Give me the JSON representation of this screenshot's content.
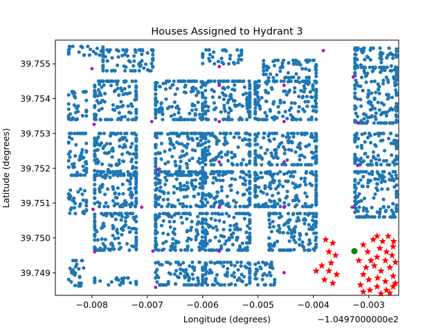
{
  "chart_data": {
    "type": "scatter",
    "title": "Houses Assigned to Hydrant 3",
    "xlabel": "Longitude (degrees)",
    "ylabel": "Latitude (degrees)",
    "x_offset_label": "−1.0497000000e2",
    "xlim": [
      -0.00866,
      -0.00246
    ],
    "ylim": [
      39.74835,
      39.75568
    ],
    "x_ticks": [
      -0.008,
      -0.007,
      -0.006,
      -0.005,
      -0.004,
      -0.003
    ],
    "x_tick_labels": [
      "−0.008",
      "−0.007",
      "−0.006",
      "−0.005",
      "−0.004",
      "−0.003"
    ],
    "y_ticks": [
      39.749,
      39.75,
      39.751,
      39.752,
      39.753,
      39.754,
      39.755
    ],
    "y_tick_labels": [
      "39.749",
      "39.750",
      "39.751",
      "39.752",
      "39.753",
      "39.754",
      "39.755"
    ],
    "grid": false,
    "legend": "none",
    "colors": {
      "houses": "#1f77b4",
      "hydrants": "#c000c0",
      "assigned": "#ff0000",
      "hydrant3": "#008000"
    },
    "house_blocks": [
      {
        "x": [
          -0.00842,
          -0.00815
        ],
        "y": [
          39.74862,
          39.74935
        ]
      },
      {
        "x": [
          -0.00795,
          -0.0072
        ],
        "y": [
          39.74865,
          39.74885
        ]
      },
      {
        "x": [
          -0.00685,
          -0.006
        ],
        "y": [
          39.74865,
          39.7493
        ]
      },
      {
        "x": [
          -0.00595,
          -0.00515
        ],
        "y": [
          39.74865,
          39.7493
        ]
      },
      {
        "x": [
          -0.00505,
          -0.0047
        ],
        "y": [
          39.74865,
          39.7493
        ]
      },
      {
        "x": [
          -0.00795,
          -0.0072
        ],
        "y": [
          39.74965,
          39.7507
        ]
      },
      {
        "x": [
          -0.00685,
          -0.006
        ],
        "y": [
          39.74965,
          39.7507
        ]
      },
      {
        "x": [
          -0.00595,
          -0.00515
        ],
        "y": [
          39.74965,
          39.7507
        ]
      },
      {
        "x": [
          -0.0048,
          -0.00395
        ],
        "y": [
          39.74965,
          39.7507
        ]
      },
      {
        "x": [
          -0.00842,
          -0.0081
        ],
        "y": [
          39.7507,
          39.7514
        ]
      },
      {
        "x": [
          -0.00795,
          -0.0072
        ],
        "y": [
          39.7509,
          39.7519
        ]
      },
      {
        "x": [
          -0.00685,
          -0.006
        ],
        "y": [
          39.7509,
          39.7519
        ]
      },
      {
        "x": [
          -0.00595,
          -0.00515
        ],
        "y": [
          39.7509,
          39.7519
        ]
      },
      {
        "x": [
          -0.00505,
          -0.00395
        ],
        "y": [
          39.7509,
          39.7519
        ]
      },
      {
        "x": [
          -0.00325,
          -0.0025
        ],
        "y": [
          39.7506,
          39.7519
        ]
      },
      {
        "x": [
          -0.00842,
          -0.0081
        ],
        "y": [
          39.7518,
          39.753
        ]
      },
      {
        "x": [
          -0.00795,
          -0.0072
        ],
        "y": [
          39.7518,
          39.753
        ]
      },
      {
        "x": [
          -0.00685,
          -0.006
        ],
        "y": [
          39.7518,
          39.753
        ]
      },
      {
        "x": [
          -0.00595,
          -0.00515
        ],
        "y": [
          39.7521,
          39.753
        ]
      },
      {
        "x": [
          -0.00505,
          -0.00395
        ],
        "y": [
          39.7521,
          39.753
        ]
      },
      {
        "x": [
          -0.00325,
          -0.0025
        ],
        "y": [
          39.7521,
          39.753
        ]
      },
      {
        "x": [
          -0.00842,
          -0.0081
        ],
        "y": [
          39.7534,
          39.7542
        ]
      },
      {
        "x": [
          -0.00795,
          -0.0072
        ],
        "y": [
          39.7534,
          39.7545
        ]
      },
      {
        "x": [
          -0.00685,
          -0.006
        ],
        "y": [
          39.7534,
          39.7545
        ]
      },
      {
        "x": [
          -0.00595,
          -0.00515
        ],
        "y": [
          39.7534,
          39.7545
        ]
      },
      {
        "x": [
          -0.00505,
          -0.00395
        ],
        "y": [
          39.7534,
          39.7545
        ]
      },
      {
        "x": [
          -0.00325,
          -0.0025
        ],
        "y": [
          39.7533,
          39.7549
        ]
      },
      {
        "x": [
          -0.00842,
          -0.0078
        ],
        "y": [
          39.75525,
          39.7555
        ]
      },
      {
        "x": [
          -0.0078,
          -0.0069
        ],
        "y": [
          39.7548,
          39.7554
        ]
      },
      {
        "x": [
          -0.006,
          -0.0053
        ],
        "y": [
          39.755,
          39.7554
        ]
      },
      {
        "x": [
          -0.0049,
          -0.00395
        ],
        "y": [
          39.7546,
          39.7551
        ]
      },
      {
        "x": [
          -0.00325,
          -0.0025
        ],
        "y": [
          39.7548,
          39.75545
        ]
      }
    ],
    "assigned_houses": [
      {
        "x": -0.00378,
        "y": 39.74995
      },
      {
        "x": -0.00365,
        "y": 39.74985
      },
      {
        "x": -0.00372,
        "y": 39.7496
      },
      {
        "x": -0.0036,
        "y": 39.7495
      },
      {
        "x": -0.00368,
        "y": 39.74928
      },
      {
        "x": -0.00385,
        "y": 39.7492
      },
      {
        "x": -0.00395,
        "y": 39.74905
      },
      {
        "x": -0.00372,
        "y": 39.74905
      },
      {
        "x": -0.00358,
        "y": 39.74895
      },
      {
        "x": -0.0038,
        "y": 39.7488
      },
      {
        "x": -0.00365,
        "y": 39.7487
      },
      {
        "x": -0.0031,
        "y": 39.7498
      },
      {
        "x": -0.00302,
        "y": 39.7496
      },
      {
        "x": -0.00318,
        "y": 39.74935
      },
      {
        "x": -0.00305,
        "y": 39.74915
      },
      {
        "x": -0.0031,
        "y": 39.74895
      },
      {
        "x": -0.003,
        "y": 39.7488
      },
      {
        "x": -0.00315,
        "y": 39.74865
      },
      {
        "x": -0.00298,
        "y": 39.7485
      },
      {
        "x": -0.0031,
        "y": 39.74845
      },
      {
        "x": -0.00285,
        "y": 39.75005
      },
      {
        "x": -0.00275,
        "y": 39.7499
      },
      {
        "x": -0.00265,
        "y": 39.75005
      },
      {
        "x": -0.00255,
        "y": 39.7499
      },
      {
        "x": -0.0028,
        "y": 39.7497
      },
      {
        "x": -0.00268,
        "y": 39.7496
      },
      {
        "x": -0.00256,
        "y": 39.74975
      },
      {
        "x": -0.00285,
        "y": 39.74945
      },
      {
        "x": -0.0027,
        "y": 39.74935
      },
      {
        "x": -0.00258,
        "y": 39.7495
      },
      {
        "x": -0.0029,
        "y": 39.7492
      },
      {
        "x": -0.00278,
        "y": 39.74905
      },
      {
        "x": -0.00262,
        "y": 39.74915
      },
      {
        "x": -0.00284,
        "y": 39.74885
      },
      {
        "x": -0.0027,
        "y": 39.74875
      },
      {
        "x": -0.00256,
        "y": 39.7489
      },
      {
        "x": -0.00285,
        "y": 39.7486
      },
      {
        "x": -0.00268,
        "y": 39.7485
      },
      {
        "x": -0.00256,
        "y": 39.7486
      },
      {
        "x": -0.00278,
        "y": 39.7484
      },
      {
        "x": -0.00262,
        "y": 39.74842
      },
      {
        "x": -0.00292,
        "y": 39.74995
      },
      {
        "x": -0.00296,
        "y": 39.74935
      },
      {
        "x": -0.00252,
        "y": 39.7493
      },
      {
        "x": -0.00252,
        "y": 39.7487
      }
    ],
    "hydrants": [
      {
        "x": -0.008,
        "y": 39.75486
      },
      {
        "x": -0.0057,
        "y": 39.75492
      },
      {
        "x": -0.00382,
        "y": 39.75538
      },
      {
        "x": -0.00328,
        "y": 39.75462
      },
      {
        "x": -0.00796,
        "y": 39.75326
      },
      {
        "x": -0.00692,
        "y": 39.75334
      },
      {
        "x": -0.0057,
        "y": 39.75438
      },
      {
        "x": -0.00453,
        "y": 39.75438
      },
      {
        "x": -0.0057,
        "y": 39.75334
      },
      {
        "x": -0.00453,
        "y": 39.75334
      },
      {
        "x": -0.0032,
        "y": 39.7533
      },
      {
        "x": -0.00682,
        "y": 39.75196
      },
      {
        "x": -0.0057,
        "y": 39.75218
      },
      {
        "x": -0.00453,
        "y": 39.75218
      },
      {
        "x": -0.0032,
        "y": 39.75208
      },
      {
        "x": -0.00798,
        "y": 39.75082
      },
      {
        "x": -0.0071,
        "y": 39.75088
      },
      {
        "x": -0.0057,
        "y": 39.75088
      },
      {
        "x": -0.00453,
        "y": 39.75088
      },
      {
        "x": -0.0033,
        "y": 39.75088
      },
      {
        "x": -0.00795,
        "y": 39.7496
      },
      {
        "x": -0.0069,
        "y": 39.74962
      },
      {
        "x": -0.0057,
        "y": 39.74962
      },
      {
        "x": -0.00453,
        "y": 39.749
      },
      {
        "x": -0.00685,
        "y": 39.74858
      }
    ],
    "hydrant_3": {
      "x": -0.00326,
      "y": 39.74962
    }
  }
}
